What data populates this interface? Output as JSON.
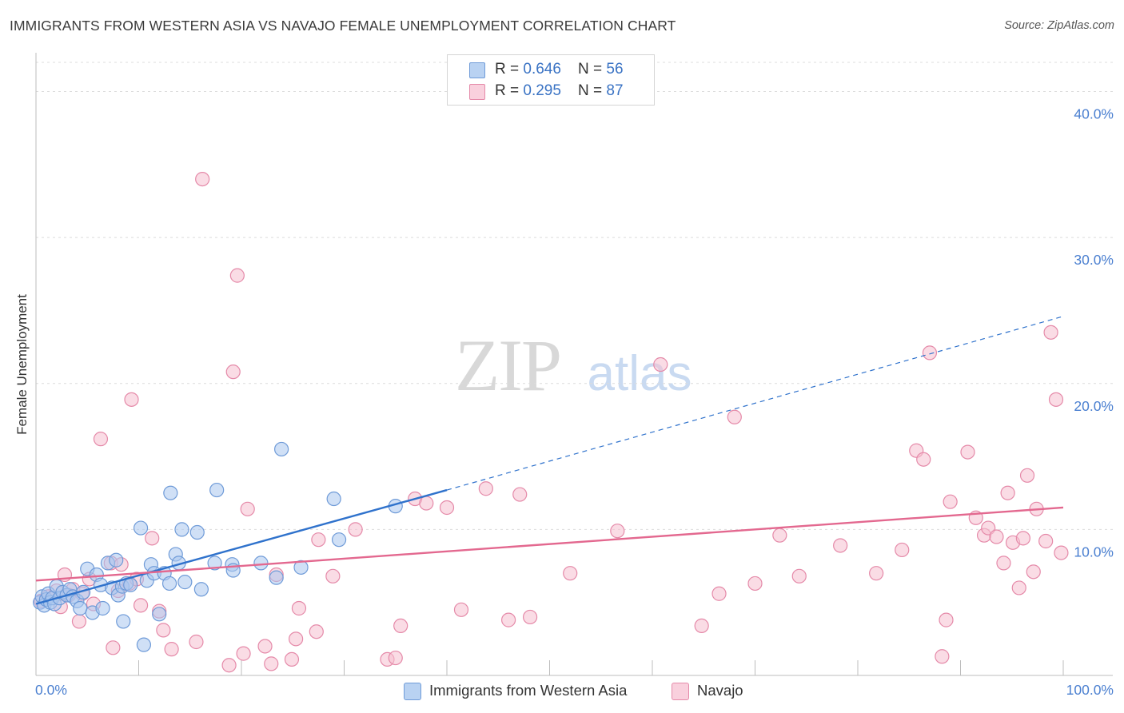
{
  "header": {
    "title": "IMMIGRANTS FROM WESTERN ASIA VS NAVAJO FEMALE UNEMPLOYMENT CORRELATION CHART",
    "source": "Source: ZipAtlas.com"
  },
  "legend": {
    "rows": [
      {
        "r_label": "R = ",
        "r_value": "0.646",
        "n_label": "N = ",
        "n_value": "56"
      },
      {
        "r_label": "R = ",
        "r_value": "0.295",
        "n_label": "N = ",
        "n_value": "87"
      }
    ]
  },
  "bottom_legend": [
    "Immigrants from Western Asia",
    "Navajo"
  ],
  "watermark": {
    "zip": "ZIP",
    "atlas": "atlas"
  },
  "colors": {
    "blue_fill": "#a9c6ee",
    "blue_stroke": "#6f9bd8",
    "blue_line": "#2f72cc",
    "pink_fill": "#f6bfd0",
    "pink_stroke": "#e58aa9",
    "pink_line": "#e3688f",
    "axis_text": "#4a7fd0",
    "grid": "#dcdcdc"
  },
  "chart_data": {
    "type": "scatter",
    "title": "IMMIGRANTS FROM WESTERN ASIA VS NAVAJO FEMALE UNEMPLOYMENT CORRELATION CHART",
    "xlabel": "",
    "ylabel": "Female Unemployment",
    "xlim": [
      0,
      100
    ],
    "ylim": [
      0,
      42
    ],
    "x_tick_labels": [
      "0.0%",
      "100.0%"
    ],
    "y_ticks": [
      10,
      20,
      30,
      40
    ],
    "y_tick_labels": [
      "10.0%",
      "20.0%",
      "30.0%",
      "40.0%"
    ],
    "grid": true,
    "series": [
      {
        "name": "Immigrants from Western Asia",
        "r": 0.646,
        "n": 56,
        "trend": {
          "x0": 0,
          "y0": 4.9,
          "x1": 40,
          "y1": 12.7,
          "dashed_to_x": 100,
          "dashed_to_y": 24.6
        },
        "points": [
          [
            0.4,
            5.0
          ],
          [
            0.6,
            5.4
          ],
          [
            0.8,
            4.8
          ],
          [
            1.0,
            5.2
          ],
          [
            1.2,
            5.6
          ],
          [
            1.4,
            5.0
          ],
          [
            1.6,
            5.3
          ],
          [
            1.8,
            4.9
          ],
          [
            2.0,
            6.1
          ],
          [
            2.3,
            5.3
          ],
          [
            2.6,
            5.7
          ],
          [
            3.0,
            5.5
          ],
          [
            3.3,
            5.9
          ],
          [
            3.6,
            5.4
          ],
          [
            4.0,
            5.1
          ],
          [
            4.3,
            4.6
          ],
          [
            4.6,
            5.7
          ],
          [
            5.0,
            7.3
          ],
          [
            5.5,
            4.3
          ],
          [
            5.9,
            6.9
          ],
          [
            6.3,
            6.2
          ],
          [
            6.5,
            4.6
          ],
          [
            7.0,
            7.7
          ],
          [
            7.4,
            6.0
          ],
          [
            7.8,
            7.9
          ],
          [
            8.0,
            5.5
          ],
          [
            8.4,
            6.1
          ],
          [
            8.5,
            3.7
          ],
          [
            8.8,
            6.3
          ],
          [
            9.2,
            6.2
          ],
          [
            10.2,
            10.1
          ],
          [
            10.5,
            2.1
          ],
          [
            10.8,
            6.5
          ],
          [
            11.2,
            7.6
          ],
          [
            11.5,
            7.0
          ],
          [
            12.0,
            4.2
          ],
          [
            12.5,
            7.0
          ],
          [
            13.0,
            6.3
          ],
          [
            13.1,
            12.5
          ],
          [
            13.6,
            8.3
          ],
          [
            13.9,
            7.7
          ],
          [
            14.2,
            10.0
          ],
          [
            14.5,
            6.4
          ],
          [
            15.7,
            9.8
          ],
          [
            16.1,
            5.9
          ],
          [
            17.4,
            7.7
          ],
          [
            17.6,
            12.7
          ],
          [
            19.1,
            7.6
          ],
          [
            19.2,
            7.2
          ],
          [
            21.9,
            7.7
          ],
          [
            23.4,
            6.7
          ],
          [
            23.9,
            15.5
          ],
          [
            25.8,
            7.4
          ],
          [
            29.0,
            12.1
          ],
          [
            29.5,
            9.3
          ],
          [
            35.0,
            11.6
          ]
        ]
      },
      {
        "name": "Navajo",
        "r": 0.295,
        "n": 87,
        "trend": {
          "x0": 0,
          "y0": 6.5,
          "x1": 100,
          "y1": 11.5
        },
        "points": [
          [
            0.5,
            5.1
          ],
          [
            1.2,
            5.4
          ],
          [
            2.0,
            5.8
          ],
          [
            2.4,
            4.7
          ],
          [
            2.8,
            6.9
          ],
          [
            3.2,
            5.5
          ],
          [
            3.6,
            5.9
          ],
          [
            4.2,
            3.7
          ],
          [
            4.5,
            5.6
          ],
          [
            5.2,
            6.6
          ],
          [
            5.6,
            4.9
          ],
          [
            6.3,
            16.2
          ],
          [
            7.3,
            7.7
          ],
          [
            7.5,
            1.9
          ],
          [
            8.0,
            5.8
          ],
          [
            8.3,
            7.6
          ],
          [
            9.1,
            6.3
          ],
          [
            9.3,
            18.9
          ],
          [
            9.8,
            6.6
          ],
          [
            10.2,
            4.8
          ],
          [
            11.3,
            9.4
          ],
          [
            12.0,
            4.4
          ],
          [
            12.4,
            3.1
          ],
          [
            13.2,
            1.8
          ],
          [
            16.2,
            34.0
          ],
          [
            15.6,
            2.3
          ],
          [
            18.8,
            0.7
          ],
          [
            19.2,
            20.8
          ],
          [
            19.6,
            27.4
          ],
          [
            20.2,
            1.5
          ],
          [
            20.6,
            11.4
          ],
          [
            22.3,
            2.0
          ],
          [
            22.9,
            0.8
          ],
          [
            23.4,
            6.9
          ],
          [
            24.9,
            1.1
          ],
          [
            25.3,
            2.5
          ],
          [
            25.6,
            4.6
          ],
          [
            27.3,
            3.0
          ],
          [
            27.5,
            9.3
          ],
          [
            28.9,
            6.8
          ],
          [
            31.1,
            10.0
          ],
          [
            34.2,
            1.1
          ],
          [
            35.0,
            1.2
          ],
          [
            35.5,
            3.4
          ],
          [
            36.9,
            12.1
          ],
          [
            38.0,
            11.8
          ],
          [
            40.0,
            11.5
          ],
          [
            41.4,
            4.5
          ],
          [
            43.8,
            12.8
          ],
          [
            46.0,
            3.8
          ],
          [
            47.1,
            12.4
          ],
          [
            48.1,
            4.0
          ],
          [
            52.0,
            7.0
          ],
          [
            56.6,
            9.9
          ],
          [
            60.8,
            21.3
          ],
          [
            64.8,
            3.4
          ],
          [
            66.5,
            5.6
          ],
          [
            68.0,
            17.7
          ],
          [
            70.0,
            6.3
          ],
          [
            72.4,
            9.6
          ],
          [
            74.3,
            6.8
          ],
          [
            78.3,
            8.9
          ],
          [
            81.8,
            7.0
          ],
          [
            84.3,
            8.6
          ],
          [
            85.7,
            15.4
          ],
          [
            86.4,
            14.8
          ],
          [
            87.0,
            22.1
          ],
          [
            88.2,
            1.3
          ],
          [
            88.6,
            3.8
          ],
          [
            89.0,
            11.9
          ],
          [
            90.7,
            15.3
          ],
          [
            91.5,
            10.8
          ],
          [
            92.3,
            9.6
          ],
          [
            92.7,
            10.1
          ],
          [
            93.5,
            9.5
          ],
          [
            94.2,
            7.7
          ],
          [
            94.6,
            12.5
          ],
          [
            95.1,
            9.1
          ],
          [
            95.7,
            6.0
          ],
          [
            96.1,
            9.4
          ],
          [
            96.5,
            13.7
          ],
          [
            97.1,
            7.1
          ],
          [
            97.4,
            11.4
          ],
          [
            98.3,
            9.2
          ],
          [
            98.8,
            23.5
          ],
          [
            99.3,
            18.9
          ],
          [
            99.8,
            8.4
          ]
        ]
      }
    ]
  }
}
